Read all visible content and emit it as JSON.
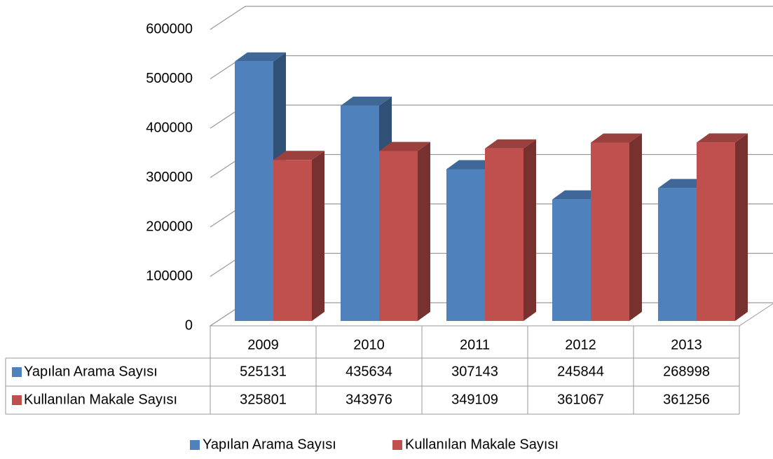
{
  "chart_data": {
    "type": "bar3d",
    "categories": [
      "2009",
      "2010",
      "2011",
      "2012",
      "2013"
    ],
    "series": [
      {
        "name": "Yapılan Arama Sayısı",
        "color": "#4f81bd",
        "values": [
          525131,
          435634,
          307143,
          245844,
          268998
        ]
      },
      {
        "name": "Kullanılan Makale Sayısı",
        "color": "#c0504d",
        "values": [
          325801,
          343976,
          349109,
          361067,
          361256
        ]
      }
    ],
    "ylim": [
      0,
      600000
    ],
    "yticks": [
      0,
      100000,
      200000,
      300000,
      400000,
      500000,
      600000
    ],
    "grid": true,
    "legend": "bottom"
  }
}
